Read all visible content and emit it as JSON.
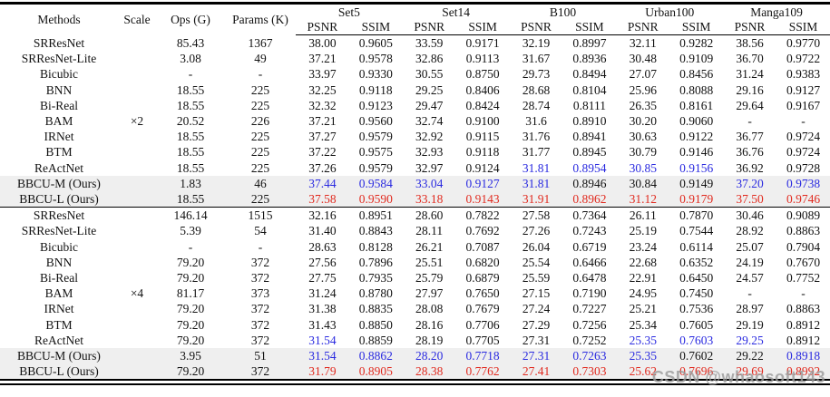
{
  "palette": {
    "text": "#121212",
    "best_value_color": "#e12b20",
    "second_best_value_color": "#2a2ae0",
    "highlight_row_bg": "#efefef",
    "rule_color": "#000000",
    "watermark_color": "#9a9a9a"
  },
  "watermark": "CSDN @whaosoft143",
  "table": {
    "col_headers": {
      "methods": "Methods",
      "scale": "Scale",
      "ops": "Ops (G)",
      "params": "Params (K)",
      "psnr": "PSNR",
      "ssim": "SSIM",
      "datasets": [
        "Set5",
        "Set14",
        "B100",
        "Urban100",
        "Manga109"
      ]
    },
    "blocks": [
      {
        "scale": "×2",
        "scale_row_index": 5,
        "rows": [
          {
            "method": "SRResNet",
            "ops": "85.43",
            "params": "1367",
            "vals": [
              "38.00",
              "0.9605",
              "33.59",
              "0.9171",
              "32.19",
              "0.8997",
              "32.11",
              "0.9282",
              "38.56",
              "0.9770"
            ],
            "colors": "kkkkkkkkkk",
            "highlight": false
          },
          {
            "method": "SRResNet-Lite",
            "ops": "3.08",
            "params": "49",
            "vals": [
              "37.21",
              "0.9578",
              "32.86",
              "0.9113",
              "31.67",
              "0.8936",
              "30.48",
              "0.9109",
              "36.70",
              "0.9722"
            ],
            "colors": "kkkkkkkkkk",
            "highlight": false
          },
          {
            "method": "Bicubic",
            "ops": "-",
            "params": "-",
            "vals": [
              "33.97",
              "0.9330",
              "30.55",
              "0.8750",
              "29.73",
              "0.8494",
              "27.07",
              "0.8456",
              "31.24",
              "0.9383"
            ],
            "colors": "kkkkkkkkkk",
            "highlight": false
          },
          {
            "method": "BNN",
            "ops": "18.55",
            "params": "225",
            "vals": [
              "32.25",
              "0.9118",
              "29.25",
              "0.8406",
              "28.68",
              "0.8104",
              "25.96",
              "0.8088",
              "29.16",
              "0.9127"
            ],
            "colors": "kkkkkkkkkk",
            "highlight": false
          },
          {
            "method": "Bi-Real",
            "ops": "18.55",
            "params": "225",
            "vals": [
              "32.32",
              "0.9123",
              "29.47",
              "0.8424",
              "28.74",
              "0.8111",
              "26.35",
              "0.8161",
              "29.64",
              "0.9167"
            ],
            "colors": "kkkkkkkkkk",
            "highlight": false
          },
          {
            "method": "BAM",
            "ops": "20.52",
            "params": "226",
            "vals": [
              "37.21",
              "0.9560",
              "32.74",
              "0.9100",
              "31.6",
              "0.8910",
              "30.20",
              "0.9060",
              "-",
              "-"
            ],
            "colors": "kkkkkkkkkk",
            "highlight": false
          },
          {
            "method": "IRNet",
            "ops": "18.55",
            "params": "225",
            "vals": [
              "37.27",
              "0.9579",
              "32.92",
              "0.9115",
              "31.76",
              "0.8941",
              "30.63",
              "0.9122",
              "36.77",
              "0.9724"
            ],
            "colors": "kkkkkkkkkk",
            "highlight": false
          },
          {
            "method": "BTM",
            "ops": "18.55",
            "params": "225",
            "vals": [
              "37.22",
              "0.9575",
              "32.93",
              "0.9118",
              "31.77",
              "0.8945",
              "30.79",
              "0.9146",
              "36.76",
              "0.9724"
            ],
            "colors": "kkkkkkkkkk",
            "highlight": false
          },
          {
            "method": "ReActNet",
            "ops": "18.55",
            "params": "225",
            "vals": [
              "37.26",
              "0.9579",
              "32.97",
              "0.9124",
              "31.81",
              "0.8954",
              "30.85",
              "0.9156",
              "36.92",
              "0.9728"
            ],
            "colors": "kkkkbbbbkk",
            "highlight": false
          },
          {
            "method": "BBCU-M (Ours)",
            "ops": "1.83",
            "params": "46",
            "vals": [
              "37.44",
              "0.9584",
              "33.04",
              "0.9127",
              "31.81",
              "0.8946",
              "30.84",
              "0.9149",
              "37.20",
              "0.9738"
            ],
            "colors": "bbbbbkkkbb",
            "highlight": true
          },
          {
            "method": "BBCU-L (Ours)",
            "ops": "18.55",
            "params": "225",
            "vals": [
              "37.58",
              "0.9590",
              "33.18",
              "0.9143",
              "31.91",
              "0.8962",
              "31.12",
              "0.9179",
              "37.50",
              "0.9746"
            ],
            "colors": "rrrrrrrrrr",
            "highlight": true
          }
        ]
      },
      {
        "scale": "×4",
        "scale_row_index": 5,
        "rows": [
          {
            "method": "SRResNet",
            "ops": "146.14",
            "params": "1515",
            "vals": [
              "32.16",
              "0.8951",
              "28.60",
              "0.7822",
              "27.58",
              "0.7364",
              "26.11",
              "0.7870",
              "30.46",
              "0.9089"
            ],
            "colors": "kkkkkkkkkk",
            "highlight": false
          },
          {
            "method": "SRResNet-Lite",
            "ops": "5.39",
            "params": "54",
            "vals": [
              "31.40",
              "0.8843",
              "28.11",
              "0.7692",
              "27.26",
              "0.7243",
              "25.19",
              "0.7544",
              "28.92",
              "0.8863"
            ],
            "colors": "kkkkkkkkkk",
            "highlight": false
          },
          {
            "method": "Bicubic",
            "ops": "-",
            "params": "-",
            "vals": [
              "28.63",
              "0.8128",
              "26.21",
              "0.7087",
              "26.04",
              "0.6719",
              "23.24",
              "0.6114",
              "25.07",
              "0.7904"
            ],
            "colors": "kkkkkkkkkk",
            "highlight": false
          },
          {
            "method": "BNN",
            "ops": "79.20",
            "params": "372",
            "vals": [
              "27.56",
              "0.7896",
              "25.51",
              "0.6820",
              "25.54",
              "0.6466",
              "22.68",
              "0.6352",
              "24.19",
              "0.7670"
            ],
            "colors": "kkkkkkkkkk",
            "highlight": false
          },
          {
            "method": "Bi-Real",
            "ops": "79.20",
            "params": "372",
            "vals": [
              "27.75",
              "0.7935",
              "25.79",
              "0.6879",
              "25.59",
              "0.6478",
              "22.91",
              "0.6450",
              "24.57",
              "0.7752"
            ],
            "colors": "kkkkkkkkkk",
            "highlight": false
          },
          {
            "method": "BAM",
            "ops": "81.17",
            "params": "373",
            "vals": [
              "31.24",
              "0.8780",
              "27.97",
              "0.7650",
              "27.15",
              "0.7190",
              "24.95",
              "0.7450",
              "-",
              "-"
            ],
            "colors": "kkkkkkkkkk",
            "highlight": false
          },
          {
            "method": "IRNet",
            "ops": "79.20",
            "params": "372",
            "vals": [
              "31.38",
              "0.8835",
              "28.08",
              "0.7679",
              "27.24",
              "0.7227",
              "25.21",
              "0.7536",
              "28.97",
              "0.8863"
            ],
            "colors": "kkkkkkkkkk",
            "highlight": false
          },
          {
            "method": "BTM",
            "ops": "79.20",
            "params": "372",
            "vals": [
              "31.43",
              "0.8850",
              "28.16",
              "0.7706",
              "27.29",
              "0.7256",
              "25.34",
              "0.7605",
              "29.19",
              "0.8912"
            ],
            "colors": "kkkkkkkkkk",
            "highlight": false
          },
          {
            "method": "ReActNet",
            "ops": "79.20",
            "params": "372",
            "vals": [
              "31.54",
              "0.8859",
              "28.19",
              "0.7705",
              "27.31",
              "0.7252",
              "25.35",
              "0.7603",
              "29.25",
              "0.8912"
            ],
            "colors": "bkkkkkbbbk",
            "highlight": false
          },
          {
            "method": "BBCU-M (Ours)",
            "ops": "3.95",
            "params": "51",
            "vals": [
              "31.54",
              "0.8862",
              "28.20",
              "0.7718",
              "27.31",
              "0.7263",
              "25.35",
              "0.7602",
              "29.22",
              "0.8918"
            ],
            "colors": "bbbbbbbkkb",
            "highlight": true
          },
          {
            "method": "BBCU-L (Ours)",
            "ops": "79.20",
            "params": "372",
            "vals": [
              "31.79",
              "0.8905",
              "28.38",
              "0.7762",
              "27.41",
              "0.7303",
              "25.62",
              "0.7696",
              "29.69",
              "0.8992"
            ],
            "colors": "rrrrrrrrrr",
            "highlight": true
          }
        ]
      }
    ]
  }
}
